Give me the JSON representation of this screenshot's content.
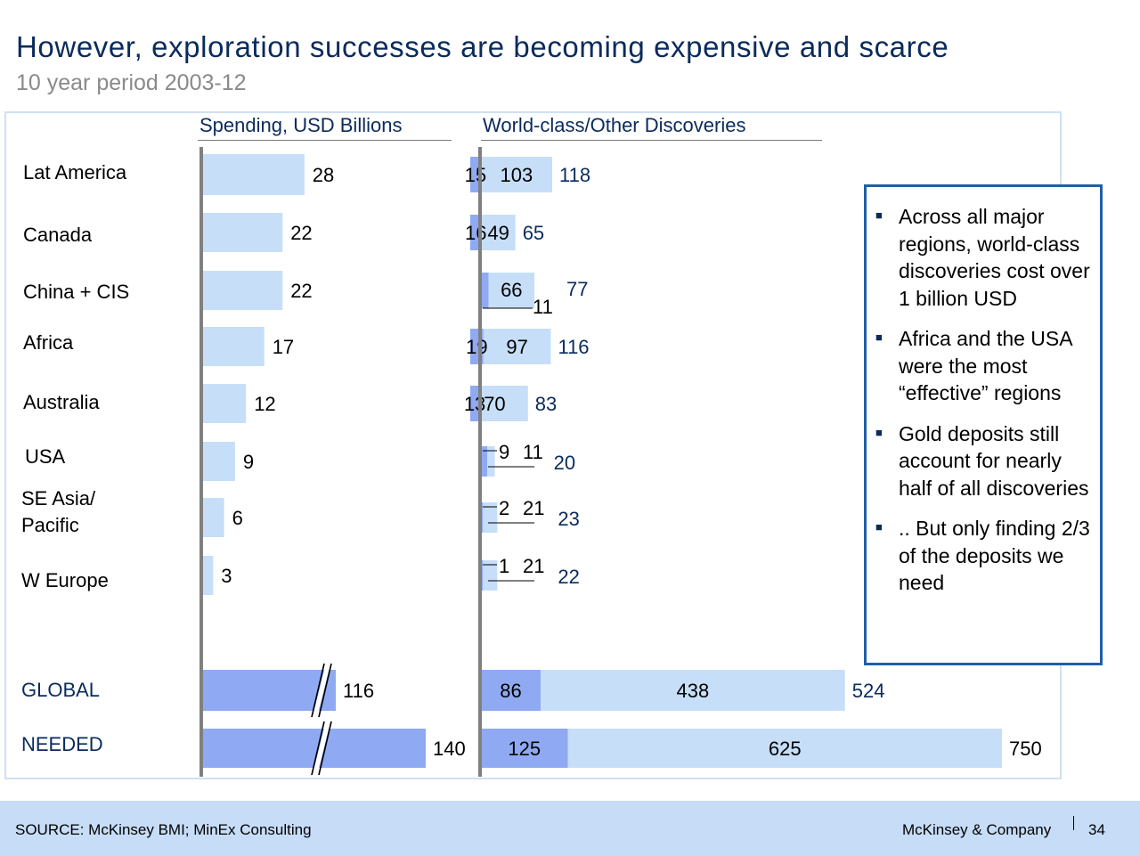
{
  "header": {
    "title": "However, exploration successes are becoming expensive and scarce",
    "subtitle": "10 year period 2003-12"
  },
  "columns": {
    "spending": "Spending, USD Billions",
    "discoveries": "World-class/Other  Discoveries"
  },
  "chart_data": {
    "type": "bar",
    "categories": [
      "Lat America",
      "Canada",
      "China + CIS",
      "Africa",
      "Australia",
      "USA",
      "SE Asia/ Pacific",
      "W Europe",
      "GLOBAL",
      "NEEDED"
    ],
    "spending": [
      28,
      22,
      22,
      17,
      12,
      9,
      6,
      3,
      116,
      140
    ],
    "world_class": [
      15,
      16,
      11,
      19,
      13,
      9,
      2,
      1,
      86,
      125
    ],
    "other": [
      103,
      49,
      66,
      97,
      70,
      11,
      21,
      21,
      438,
      625
    ],
    "total": [
      118,
      65,
      77,
      116,
      83,
      20,
      23,
      22,
      524,
      750
    ],
    "axis_break_on": [
      "GLOBAL",
      "NEEDED"
    ],
    "colors": {
      "light_bar": "#c6def8",
      "dark_bar": "#8faaf2",
      "axis": "#808080",
      "navy_text": "#0a2b5c"
    }
  },
  "callout": {
    "bullets": [
      "Across all major regions, world-class discoveries cost over 1 billion USD",
      "Africa and the USA were the most “effective” regions",
      "Gold deposits still account for nearly half of all discoveries",
      ".. But only finding 2/3 of the deposits we need"
    ]
  },
  "footer": {
    "source": "SOURCE: McKinsey BMI; MinEx Consulting",
    "brand": "McKinsey & Company",
    "page_number": "34"
  }
}
